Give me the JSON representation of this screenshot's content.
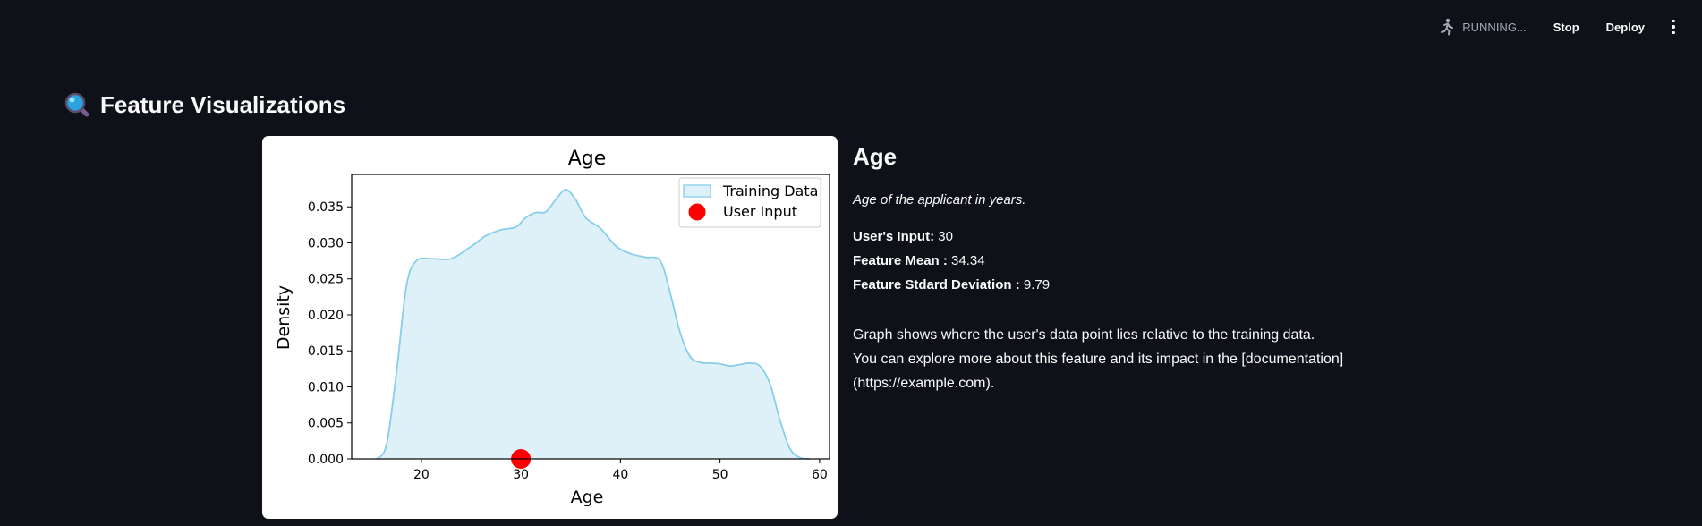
{
  "topbar": {
    "status_text": "RUNNING...",
    "stop_label": "Stop",
    "deploy_label": "Deploy"
  },
  "page": {
    "title": "Feature Visualizations",
    "title_icon": "magnifying-glass-icon"
  },
  "info": {
    "feature_name": "Age",
    "description": "Age of the applicant in years.",
    "user_input_label": "User's Input:",
    "user_input_value": "30",
    "mean_label": "Feature Mean :",
    "mean_value": "34.34",
    "std_label": "Feature Stdard Deviation :",
    "std_value": "9.79",
    "note_line1": "Graph shows where the user's data point lies relative to the training data.",
    "note_line2": "You can explore more about this feature and its impact in the [documentation]",
    "note_line3": "(https://example.com)."
  },
  "chart_data": {
    "type": "area",
    "title": "Age",
    "xlabel": "Age",
    "ylabel": "Density",
    "xlim": [
      13,
      61
    ],
    "ylim": [
      0,
      0.0395
    ],
    "xticks": [
      20,
      30,
      40,
      50,
      60
    ],
    "yticks": [
      0.0,
      0.005,
      0.01,
      0.015,
      0.02,
      0.025,
      0.03,
      0.035
    ],
    "legend_position": "top-right",
    "grid": false,
    "series": [
      {
        "name": "Training Data",
        "color": "#87ceeb",
        "fill": "#dff1f8",
        "x": [
          15.5,
          16.5,
          17.5,
          18.5,
          19.5,
          21,
          23,
          25,
          26.5,
          28,
          29.5,
          30.5,
          31.5,
          32.5,
          33.5,
          34.5,
          35.5,
          36.5,
          38,
          39.5,
          41,
          42.5,
          44,
          45,
          46,
          47,
          48,
          49,
          50,
          51,
          52,
          53,
          54,
          55,
          56,
          57,
          58,
          59
        ],
        "y": [
          0.0,
          0.002,
          0.012,
          0.024,
          0.0275,
          0.0278,
          0.0278,
          0.0295,
          0.031,
          0.0318,
          0.0322,
          0.0335,
          0.0342,
          0.0343,
          0.036,
          0.0374,
          0.036,
          0.0335,
          0.032,
          0.0296,
          0.0285,
          0.028,
          0.0275,
          0.023,
          0.0175,
          0.0142,
          0.0134,
          0.0133,
          0.0132,
          0.0129,
          0.0131,
          0.0133,
          0.0129,
          0.0105,
          0.0055,
          0.0015,
          0.0002,
          0.0
        ]
      },
      {
        "name": "User Input",
        "type": "scatter",
        "color": "#ff0000",
        "x": [
          30
        ],
        "y": [
          0.0
        ]
      }
    ]
  }
}
